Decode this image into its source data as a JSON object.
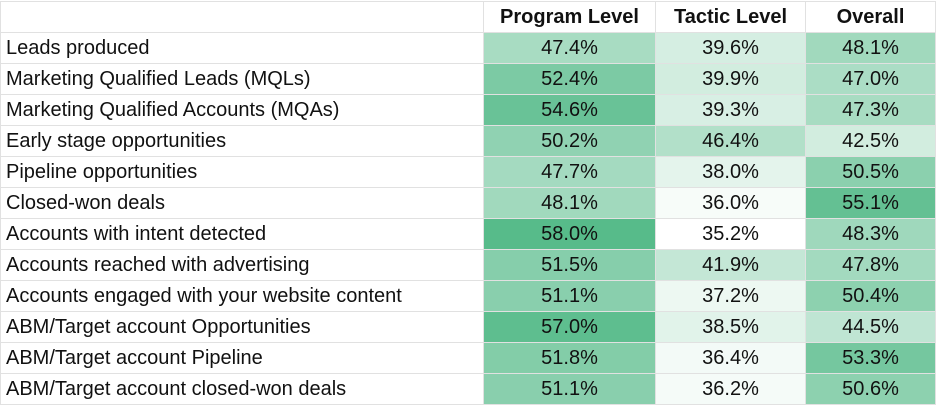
{
  "colors": {
    "scale_low": "#ffffff",
    "scale_high": "#57bb8a"
  },
  "headers": [
    "",
    "Program Level",
    "Tactic Level",
    "Overall"
  ],
  "rows": [
    {
      "label": "Leads produced",
      "values": [
        "47.4%",
        "39.6%",
        "48.1%"
      ],
      "color_levels": [
        0.52,
        0.25,
        0.56
      ]
    },
    {
      "label": "Marketing Qualified Leads (MQLs)",
      "values": [
        "52.4%",
        "39.9%",
        "47.0%"
      ],
      "color_levels": [
        0.78,
        0.27,
        0.5
      ]
    },
    {
      "label": "Marketing Qualified Accounts (MQAs)",
      "values": [
        "54.6%",
        "39.3%",
        "47.3%"
      ],
      "color_levels": [
        0.89,
        0.23,
        0.52
      ]
    },
    {
      "label": "Early stage opportunities",
      "values": [
        "50.2%",
        "46.4%",
        "42.5%"
      ],
      "color_levels": [
        0.66,
        0.46,
        0.27
      ]
    },
    {
      "label": "Pipeline opportunities",
      "values": [
        "47.7%",
        "38.0%",
        "50.5%"
      ],
      "color_levels": [
        0.54,
        0.16,
        0.69
      ]
    },
    {
      "label": "Closed-won deals",
      "values": [
        "48.1%",
        "36.0%",
        "55.1%"
      ],
      "color_levels": [
        0.56,
        0.05,
        0.92
      ]
    },
    {
      "label": "Accounts with intent detected",
      "values": [
        "58.0%",
        "35.2%",
        "48.3%"
      ],
      "color_levels": [
        1.0,
        0.0,
        0.57
      ]
    },
    {
      "label": "Accounts reached with advertising",
      "values": [
        "51.5%",
        "41.9%",
        "47.8%"
      ],
      "color_levels": [
        0.72,
        0.35,
        0.55
      ]
    },
    {
      "label": "Accounts engaged with your website content",
      "values": [
        "51.1%",
        "37.2%",
        "50.4%"
      ],
      "color_levels": [
        0.7,
        0.11,
        0.68
      ]
    },
    {
      "label": "ABM/Target account Opportunities",
      "values": [
        "57.0%",
        "38.5%",
        "44.5%"
      ],
      "color_levels": [
        0.96,
        0.18,
        0.38
      ]
    },
    {
      "label": "ABM/Target account Pipeline",
      "values": [
        "51.8%",
        "36.4%",
        "53.3%"
      ],
      "color_levels": [
        0.74,
        0.07,
        0.82
      ]
    },
    {
      "label": "ABM/Target account closed-won deals",
      "values": [
        "51.1%",
        "36.2%",
        "50.6%"
      ],
      "color_levels": [
        0.7,
        0.06,
        0.68
      ]
    }
  ]
}
